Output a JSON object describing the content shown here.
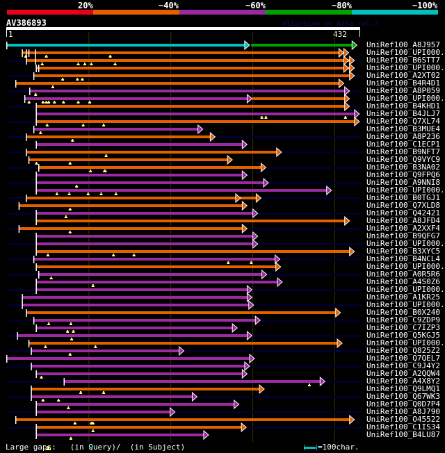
{
  "legend": {
    "labels": [
      "20%",
      "~40%",
      "~60%",
      "~80%",
      "~100%"
    ],
    "colors": [
      "#e8001c",
      "#e26000",
      "#9b2aa0",
      "#00a000",
      "#00c0c0"
    ]
  },
  "query": {
    "id": "AV386893",
    "length": 432,
    "scale_start": "1",
    "scale_end": "432",
    "watermark": "AlignView.pm Beta rel.7"
  },
  "colors": {
    "orange": "#e26000",
    "purple": "#9b2aa0",
    "green": "#00a000",
    "cyan": "#00c0c0",
    "stripe": "#00002a",
    "gap_marker": "#ffff80",
    "grid": "#3a3300"
  },
  "hits": [
    {
      "label": "UniRef100_A8J957",
      "segments": [
        {
          "from": 1,
          "to": 297,
          "color": "cyan"
        },
        {
          "from": 299,
          "to": 428,
          "color": "green"
        }
      ],
      "starts": [
        1
      ],
      "gaps": []
    },
    {
      "label": "UniRef100_UPI000..",
      "segments": [
        {
          "from": 20,
          "to": 412,
          "color": "orange"
        },
        {
          "from": 20,
          "to": 418,
          "color": "orange"
        }
      ],
      "starts": [
        20,
        25,
        28,
        36
      ],
      "gaps": [
        24,
        49,
        127
      ]
    },
    {
      "label": "UniRef100_B6STT7",
      "segments": [
        {
          "from": 25,
          "to": 418,
          "color": "orange"
        },
        {
          "from": 25,
          "to": 425,
          "color": "orange"
        }
      ],
      "starts": [
        25,
        36
      ],
      "gaps": [
        44,
        88,
        96,
        104,
        133
      ]
    },
    {
      "label": "UniRef100_UPI000..",
      "segments": [
        {
          "from": 37,
          "to": 418,
          "color": "orange"
        },
        {
          "from": 37,
          "to": 425,
          "color": "orange"
        }
      ],
      "starts": [
        37,
        40
      ],
      "gaps": []
    },
    {
      "label": "UniRef100_A2XT02",
      "segments": [
        {
          "from": 34,
          "to": 425,
          "color": "orange"
        }
      ],
      "starts": [
        34
      ],
      "gaps": [
        69,
        87,
        93
      ]
    },
    {
      "label": "UniRef100_B4R4D1",
      "segments": [
        {
          "from": 12,
          "to": 412,
          "color": "orange"
        }
      ],
      "starts": [
        12
      ],
      "gaps": [
        57
      ]
    },
    {
      "label": "UniRef100_A8P059",
      "segments": [
        {
          "from": 29,
          "to": 419,
          "color": "purple"
        }
      ],
      "starts": [
        29
      ],
      "gaps": [
        36
      ]
    },
    {
      "label": "UniRef100_UPI000..",
      "segments": [
        {
          "from": 23,
          "to": 300,
          "color": "purple"
        },
        {
          "from": 300,
          "to": 419,
          "color": "orange"
        }
      ],
      "starts": [
        23
      ],
      "gaps": [
        28,
        45,
        49,
        52,
        59,
        70,
        88,
        102
      ]
    },
    {
      "label": "UniRef100_B4KHD1",
      "segments": [
        {
          "from": 37,
          "to": 419,
          "color": "orange"
        }
      ],
      "starts": [
        37
      ],
      "gaps": []
    },
    {
      "label": "UniRef100_B4JLJ7",
      "segments": [
        {
          "from": 37,
          "to": 431,
          "color": "purple"
        }
      ],
      "starts": [
        37
      ],
      "gaps": [
        312,
        317,
        414
      ]
    },
    {
      "label": "UniRef100_Q7XL74",
      "segments": [
        {
          "from": 37,
          "to": 431,
          "color": "orange"
        }
      ],
      "starts": [
        37
      ],
      "gaps": [
        50,
        94,
        119
      ]
    },
    {
      "label": "UniRef100_B3MUE4",
      "segments": [
        {
          "from": 34,
          "to": 240,
          "color": "purple"
        }
      ],
      "starts": [
        34
      ],
      "gaps": [
        42
      ]
    },
    {
      "label": "UniRef100_A8P236",
      "segments": [
        {
          "from": 25,
          "to": 255,
          "color": "orange"
        }
      ],
      "starts": [
        25
      ],
      "gaps": [
        81
      ]
    },
    {
      "label": "UniRef100_C1ECP1",
      "segments": [
        {
          "from": 37,
          "to": 294,
          "color": "purple"
        }
      ],
      "starts": [
        37
      ],
      "gaps": []
    },
    {
      "label": "UniRef100_B9NFT7",
      "segments": [
        {
          "from": 25,
          "to": 336,
          "color": "orange"
        }
      ],
      "starts": [
        25
      ],
      "gaps": [
        122
      ]
    },
    {
      "label": "UniRef100_Q9VYC9",
      "segments": [
        {
          "from": 28,
          "to": 276,
          "color": "orange"
        }
      ],
      "starts": [
        28
      ],
      "gaps": [
        37,
        78
      ]
    },
    {
      "label": "UniRef100_B3NA02",
      "segments": [
        {
          "from": 40,
          "to": 317,
          "color": "orange"
        }
      ],
      "starts": [
        40
      ],
      "gaps": [
        103,
        120,
        121
      ]
    },
    {
      "label": "UniRef100_Q9FPQ6",
      "segments": [
        {
          "from": 37,
          "to": 294,
          "color": "purple"
        }
      ],
      "starts": [
        37
      ],
      "gaps": []
    },
    {
      "label": "UniRef100_A9NNI8",
      "segments": [
        {
          "from": 37,
          "to": 320,
          "color": "purple"
        }
      ],
      "starts": [
        37
      ],
      "gaps": [
        86
      ]
    },
    {
      "label": "UniRef100_UPI000..",
      "segments": [
        {
          "from": 37,
          "to": 397,
          "color": "purple"
        }
      ],
      "starts": [
        37
      ],
      "gaps": [
        62,
        77,
        100,
        116,
        134
      ]
    },
    {
      "label": "UniRef100_B0TGJ1",
      "segments": [
        {
          "from": 25,
          "to": 286,
          "color": "orange"
        },
        {
          "from": 25,
          "to": 311,
          "color": "orange"
        }
      ],
      "starts": [
        25
      ],
      "gaps": []
    },
    {
      "label": "UniRef100_Q7XLD8",
      "segments": [
        {
          "from": 16,
          "to": 294,
          "color": "orange"
        }
      ],
      "starts": [
        16
      ],
      "gaps": [
        78
      ]
    },
    {
      "label": "UniRef100_Q42421",
      "segments": [
        {
          "from": 37,
          "to": 307,
          "color": "purple"
        }
      ],
      "starts": [
        37
      ],
      "gaps": [
        73
      ]
    },
    {
      "label": "UniRef100_A8JFD4",
      "segments": [
        {
          "from": 37,
          "to": 419,
          "color": "orange"
        }
      ],
      "starts": [
        37
      ],
      "gaps": []
    },
    {
      "label": "UniRef100_A2XXF4",
      "segments": [
        {
          "from": 16,
          "to": 294,
          "color": "orange"
        }
      ],
      "starts": [
        16
      ],
      "gaps": [
        78
      ]
    },
    {
      "label": "UniRef100_B9QFG7",
      "segments": [
        {
          "from": 37,
          "to": 307,
          "color": "purple"
        }
      ],
      "starts": [
        37
      ],
      "gaps": []
    },
    {
      "label": "UniRef100_UPI000..",
      "segments": [
        {
          "from": 37,
          "to": 307,
          "color": "purple"
        }
      ],
      "starts": [
        37
      ],
      "gaps": []
    },
    {
      "label": "UniRef100_B3XYC5",
      "segments": [
        {
          "from": 37,
          "to": 425,
          "color": "orange"
        }
      ],
      "starts": [
        37
      ],
      "gaps": [
        51,
        131,
        156
      ]
    },
    {
      "label": "UniRef100_B4NCL4",
      "segments": [
        {
          "from": 34,
          "to": 334,
          "color": "purple"
        }
      ],
      "starts": [
        34
      ],
      "gaps": [
        271,
        299
      ]
    },
    {
      "label": "UniRef100_UPI000..",
      "segments": [
        {
          "from": 37,
          "to": 335,
          "color": "orange"
        }
      ],
      "starts": [
        37
      ],
      "gaps": []
    },
    {
      "label": "UniRef100_A0R5R6",
      "segments": [
        {
          "from": 40,
          "to": 318,
          "color": "purple"
        }
      ],
      "starts": [
        40
      ],
      "gaps": [
        55
      ]
    },
    {
      "label": "UniRef100_A4S0Z6",
      "segments": [
        {
          "from": 37,
          "to": 337,
          "color": "purple"
        }
      ],
      "starts": [
        37
      ],
      "gaps": [
        106
      ]
    },
    {
      "label": "UniRef100_UPI000..",
      "segments": [
        {
          "from": 37,
          "to": 300,
          "color": "purple"
        }
      ],
      "starts": [
        37
      ],
      "gaps": []
    },
    {
      "label": "UniRef100_A1KR25",
      "segments": [
        {
          "from": 20,
          "to": 300,
          "color": "purple"
        }
      ],
      "starts": [
        20
      ],
      "gaps": []
    },
    {
      "label": "UniRef100_UPI000..",
      "segments": [
        {
          "from": 20,
          "to": 302,
          "color": "purple"
        }
      ],
      "starts": [
        20
      ],
      "gaps": []
    },
    {
      "label": "UniRef100_B0X240",
      "segments": [
        {
          "from": 25,
          "to": 408,
          "color": "orange"
        }
      ],
      "starts": [
        25
      ],
      "gaps": []
    },
    {
      "label": "UniRef100_C9ZDP9",
      "segments": [
        {
          "from": 34,
          "to": 310,
          "color": "purple"
        }
      ],
      "starts": [
        34
      ],
      "gaps": [
        52,
        79
      ]
    },
    {
      "label": "UniRef100_C7IZP3",
      "segments": [
        {
          "from": 37,
          "to": 282,
          "color": "purple"
        }
      ],
      "starts": [
        37
      ],
      "gaps": [
        75,
        82
      ]
    },
    {
      "label": "UniRef100_Q5KGJ5",
      "segments": [
        {
          "from": 14,
          "to": 300,
          "color": "purple"
        }
      ],
      "starts": [
        14
      ],
      "gaps": [
        80
      ]
    },
    {
      "label": "UniRef100_UPI000..",
      "segments": [
        {
          "from": 28,
          "to": 410,
          "color": "orange"
        }
      ],
      "starts": [
        28
      ],
      "gaps": [
        48,
        109
      ]
    },
    {
      "label": "UniRef100_Q825Z2",
      "segments": [
        {
          "from": 31,
          "to": 217,
          "color": "purple"
        }
      ],
      "starts": [
        31
      ],
      "gaps": [
        78
      ]
    },
    {
      "label": "UniRef100_Q7QEL7",
      "segments": [
        {
          "from": 1,
          "to": 303,
          "color": "purple"
        }
      ],
      "starts": [
        1
      ],
      "gaps": []
    },
    {
      "label": "UniRef100_C9J4Y2",
      "segments": [
        {
          "from": 31,
          "to": 297,
          "color": "purple"
        }
      ],
      "starts": [
        31
      ],
      "gaps": []
    },
    {
      "label": "UniRef100_A2QQW4",
      "segments": [
        {
          "from": 37,
          "to": 294,
          "color": "purple"
        }
      ],
      "starts": [
        37
      ],
      "gaps": [
        43
      ]
    },
    {
      "label": "UniRef100_A4X8Y2",
      "segments": [
        {
          "from": 71,
          "to": 389,
          "color": "purple"
        }
      ],
      "starts": [
        71
      ],
      "gaps": [
        370
      ]
    },
    {
      "label": "UniRef100_Q9LMQ1",
      "segments": [
        {
          "from": 31,
          "to": 315,
          "color": "orange"
        }
      ],
      "starts": [
        31
      ],
      "gaps": [
        91,
        119
      ]
    },
    {
      "label": "UniRef100_Q67WK3",
      "segments": [
        {
          "from": 31,
          "to": 233,
          "color": "purple"
        }
      ],
      "starts": [
        31
      ],
      "gaps": [
        45,
        64
      ]
    },
    {
      "label": "UniRef100_Q0D7P4",
      "segments": [
        {
          "from": 37,
          "to": 284,
          "color": "purple"
        }
      ],
      "starts": [
        37
      ],
      "gaps": [
        76
      ]
    },
    {
      "label": "UniRef100_A8J790",
      "segments": [
        {
          "from": 37,
          "to": 206,
          "color": "purple"
        }
      ],
      "starts": [
        37
      ],
      "gaps": []
    },
    {
      "label": "UniRef100_O45522",
      "segments": [
        {
          "from": 12,
          "to": 425,
          "color": "orange"
        }
      ],
      "starts": [
        12
      ],
      "gaps": [
        84,
        104,
        106
      ]
    },
    {
      "label": "UniRef100_C1IS34",
      "segments": [
        {
          "from": 37,
          "to": 293,
          "color": "orange"
        }
      ],
      "starts": [
        37
      ],
      "gaps": [
        106
      ]
    },
    {
      "label": "UniRef100_B4LU87",
      "segments": [
        {
          "from": 37,
          "to": 247,
          "color": "purple"
        }
      ],
      "starts": [
        37
      ],
      "gaps": [
        79
      ]
    }
  ],
  "footer": {
    "gaps_text": "Large gaps:   (in Query)/  (in Subject)",
    "scale_text": "=100char."
  }
}
